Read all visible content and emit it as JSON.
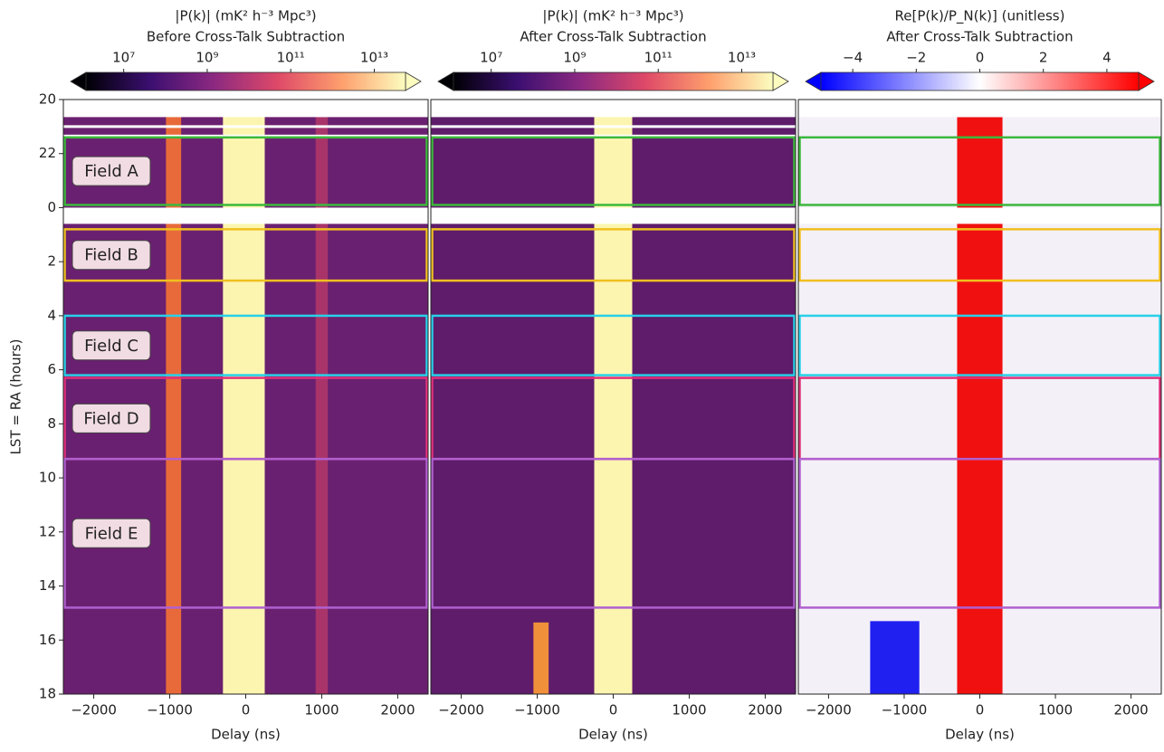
{
  "chart_data": [
    {
      "type": "heatmap",
      "colorbar_title": "|P(k)| (mK² h⁻³ Mpc³)",
      "title": "Before Cross-Talk Subtraction",
      "cmap": "magma",
      "log_colorbar": true,
      "clim": [
        1250000,
        56000000000000
      ],
      "cticks": [
        {
          "value": 10000000,
          "label": "10⁷"
        },
        {
          "value": 1000000000,
          "label": "10⁹"
        },
        {
          "value": 100000000000,
          "label": "10¹¹"
        },
        {
          "value": 10000000000000,
          "label": "10¹³"
        }
      ],
      "background": "#6a2070",
      "features": [
        {
          "xrange": [
            -1050,
            -850
          ],
          "lst": [
            20,
            42
          ],
          "color": "#e86a3a"
        },
        {
          "xrange": [
            -300,
            250
          ],
          "lst": [
            20,
            42
          ],
          "color": "#fcf5b0"
        },
        {
          "xrange": [
            920,
            1080
          ],
          "lst": [
            20,
            42
          ],
          "color": "#a8346a"
        }
      ],
      "missing": [
        [
          20,
          20.65
        ],
        [
          20.95,
          21.05
        ],
        [
          21.3,
          21.4
        ],
        [
          24.0,
          24.6
        ]
      ],
      "xlabel": "Delay (ns)",
      "xlim": [
        -2400,
        2400
      ],
      "xticks": [
        {
          "value": -2000,
          "label": "−2000"
        },
        {
          "value": -1000,
          "label": "−1000"
        },
        0,
        1000,
        2000
      ],
      "ylabel": "LST = RA (hours)",
      "ylim": [
        20,
        42
      ],
      "yticks": [
        20,
        22,
        {
          "value": 24,
          "label": "0"
        },
        {
          "value": 26,
          "label": "2"
        },
        {
          "value": 28,
          "label": "4"
        },
        {
          "value": 30,
          "label": "6"
        },
        {
          "value": 32,
          "label": "8"
        },
        {
          "value": 34,
          "label": "10"
        },
        {
          "value": 36,
          "label": "12"
        },
        {
          "value": 38,
          "label": "14"
        },
        {
          "value": 40,
          "label": "16"
        },
        {
          "value": 42,
          "label": "18"
        }
      ],
      "fields": [
        {
          "name": "Field A",
          "lst": [
            21.4,
            23.9
          ],
          "color": "#3cb83c"
        },
        {
          "name": "Field B",
          "lst": [
            24.8,
            26.7
          ],
          "color": "#f0c020"
        },
        {
          "name": "Field C",
          "lst": [
            28.0,
            30.2
          ],
          "color": "#28d0e8"
        },
        {
          "name": "Field D",
          "lst": [
            30.3,
            33.3
          ],
          "color": "#e0307a"
        },
        {
          "name": "Field E",
          "lst": [
            33.3,
            38.8
          ],
          "color": "#b060d0"
        }
      ]
    },
    {
      "type": "heatmap",
      "colorbar_title": "|P(k)| (mK² h⁻³ Mpc³)",
      "title": "After Cross-Talk Subtraction",
      "cmap": "magma",
      "log_colorbar": true,
      "clim": [
        1250000,
        56000000000000
      ],
      "cticks": [
        {
          "value": 10000000,
          "label": "10⁷"
        },
        {
          "value": 1000000000,
          "label": "10⁹"
        },
        {
          "value": 100000000000,
          "label": "10¹¹"
        },
        {
          "value": 10000000000000,
          "label": "10¹³"
        }
      ],
      "background": "#5e1c6a",
      "features": [
        {
          "xrange": [
            -1050,
            -850
          ],
          "lst": [
            39.35,
            42
          ],
          "color": "#f0903a"
        },
        {
          "xrange": [
            -250,
            250
          ],
          "lst": [
            20,
            42
          ],
          "color": "#fcf5b0"
        }
      ],
      "missing": [
        [
          20,
          20.65
        ],
        [
          20.95,
          21.05
        ],
        [
          21.3,
          21.4
        ],
        [
          24.0,
          24.6
        ]
      ],
      "xlabel": "Delay (ns)",
      "xlim": [
        -2400,
        2400
      ],
      "xticks": [
        {
          "value": -2000,
          "label": "−2000"
        },
        {
          "value": -1000,
          "label": "−1000"
        },
        0,
        1000,
        2000
      ],
      "ylim": [
        20,
        42
      ],
      "fields": [
        {
          "lst": [
            21.4,
            23.9
          ],
          "color": "#3cb83c"
        },
        {
          "lst": [
            24.8,
            26.7
          ],
          "color": "#f0c020"
        },
        {
          "lst": [
            28.0,
            30.2
          ],
          "color": "#28d0e8"
        },
        {
          "lst": [
            30.3,
            33.3
          ],
          "color": "#e0307a"
        },
        {
          "lst": [
            33.3,
            38.8
          ],
          "color": "#b060d0"
        }
      ]
    },
    {
      "type": "heatmap",
      "colorbar_title": "Re[P(k)/P_N(k)] (unitless)",
      "title": "After Cross-Talk Subtraction",
      "cmap": "bwr",
      "log_colorbar": false,
      "clim": [
        -5,
        5
      ],
      "cticks": [
        {
          "value": -4,
          "label": "−4"
        },
        {
          "value": -2,
          "label": "−2"
        },
        0,
        2,
        4
      ],
      "background": "#f4f0f8",
      "features": [
        {
          "xrange": [
            -1450,
            -800
          ],
          "lst": [
            39.3,
            42
          ],
          "color": "#2020f0"
        },
        {
          "xrange": [
            -300,
            300
          ],
          "lst": [
            20.65,
            42
          ],
          "color": "#f01010"
        }
      ],
      "missing": [
        [
          20,
          20.65
        ],
        [
          24.0,
          24.6
        ]
      ],
      "xlabel": "Delay (ns)",
      "xlim": [
        -2400,
        2400
      ],
      "xticks": [
        {
          "value": -2000,
          "label": "−2000"
        },
        {
          "value": -1000,
          "label": "−1000"
        },
        0,
        1000,
        2000
      ],
      "ylim": [
        20,
        42
      ],
      "fields": [
        {
          "lst": [
            21.4,
            23.9
          ],
          "color": "#3cb83c"
        },
        {
          "lst": [
            24.8,
            26.7
          ],
          "color": "#f0c020"
        },
        {
          "lst": [
            28.0,
            30.2
          ],
          "color": "#28d0e8"
        },
        {
          "lst": [
            30.3,
            33.3
          ],
          "color": "#e0307a"
        },
        {
          "lst": [
            33.3,
            38.8
          ],
          "color": "#b060d0"
        }
      ]
    }
  ]
}
